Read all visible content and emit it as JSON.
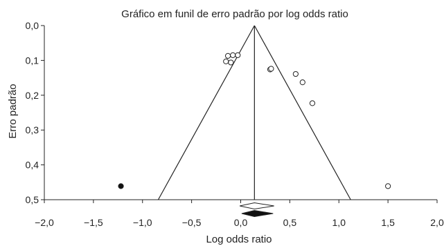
{
  "chart_data": {
    "type": "scatter",
    "title": "Gráfico em funil de erro padrão por log odds ratio",
    "xlabel": "Log odds ratio",
    "ylabel": "Erro padrão",
    "xlim": [
      -2.0,
      2.0
    ],
    "ylim": [
      0.0,
      0.5
    ],
    "y_inverted": true,
    "x_ticks": [
      -2.0,
      -1.5,
      -1.0,
      -0.5,
      0.0,
      0.5,
      1.0,
      1.5,
      2.0
    ],
    "x_tick_labels": [
      "−2,0",
      "−1,5",
      "−1,0",
      "−0,5",
      "0,0",
      "0,5",
      "1,0",
      "1,5",
      "2,0"
    ],
    "y_ticks": [
      0.0,
      0.1,
      0.2,
      0.3,
      0.4,
      0.5
    ],
    "y_tick_labels": [
      "0,0",
      "0,1",
      "0,2",
      "0,3",
      "0,4",
      "0,5"
    ],
    "grid": false,
    "pooled_estimate": 0.14,
    "funnel": {
      "apex": [
        0.14,
        0.0
      ],
      "base_left": [
        -0.84,
        0.5
      ],
      "base_right": [
        1.12,
        0.5
      ]
    },
    "series": [
      {
        "marker": "open-circle",
        "points": [
          {
            "x": -0.15,
            "y": 0.103
          },
          {
            "x": -0.13,
            "y": 0.087
          },
          {
            "x": -0.08,
            "y": 0.085
          },
          {
            "x": -0.1,
            "y": 0.106
          },
          {
            "x": -0.03,
            "y": 0.085
          },
          {
            "x": 0.3,
            "y": 0.126
          },
          {
            "x": 0.31,
            "y": 0.124
          },
          {
            "x": 0.56,
            "y": 0.139
          },
          {
            "x": 0.63,
            "y": 0.163
          },
          {
            "x": 0.73,
            "y": 0.223
          },
          {
            "x": 1.5,
            "y": 0.461
          }
        ]
      },
      {
        "marker": "filled-circle",
        "points": [
          {
            "x": -1.22,
            "y": 0.461
          }
        ]
      }
    ],
    "summary_diamonds": [
      {
        "style": "open",
        "center": 0.14,
        "low": -0.01,
        "high": 0.34
      },
      {
        "style": "filled",
        "center": 0.14,
        "low": 0.01,
        "high": 0.33
      }
    ],
    "colors": {
      "axis": "#222222",
      "funnel": "#222222",
      "marker_stroke": "#222222",
      "marker_fill_open": "#ffffff",
      "marker_fill_filled": "#111111"
    }
  }
}
